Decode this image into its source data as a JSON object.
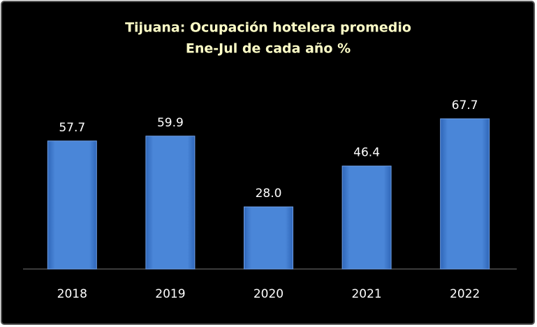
{
  "chart_data": {
    "type": "bar",
    "title": "Tijuana: Ocupación hotelera promedio",
    "subtitle": "Ene-Jul de cada año %",
    "categories": [
      "2018",
      "2019",
      "2020",
      "2021",
      "2022"
    ],
    "values": [
      57.7,
      59.9,
      28.0,
      46.4,
      67.7
    ],
    "value_labels": [
      "57.7",
      "59.9",
      "28.0",
      "46.4",
      "67.7"
    ],
    "color": "#4a86d8"
  }
}
